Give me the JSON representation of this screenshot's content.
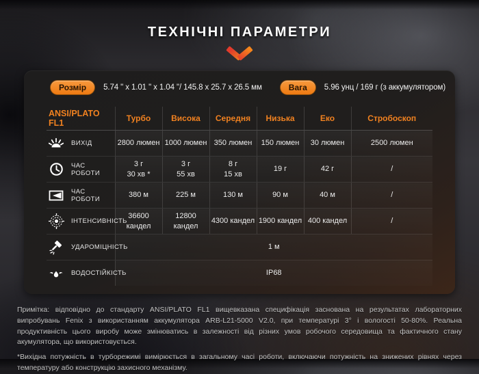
{
  "title": "ТЕХНІЧНІ ПАРАМЕТРИ",
  "specs": {
    "size_label": "Розмір",
    "size_value": "5.74 \" x 1.01 \" x 1.04 \"/ 145.8 x 25.7 x 26.5 мм",
    "weight_label": "Вага",
    "weight_value": "5.96 унц / 169 г (з аккумулятором)"
  },
  "table": {
    "header": [
      "ANSI/PLATO FL1",
      "Турбо",
      "Висока",
      "Середня",
      "Низька",
      "Еко",
      "Стробоскоп"
    ],
    "rows": [
      {
        "icon": "light-output-icon",
        "label": "ВИХІД",
        "values": [
          "2800 люмен",
          "1000 люмен",
          "350 люмен",
          "150 люмен",
          "30 люмен",
          "2500 люмен"
        ]
      },
      {
        "icon": "clock-icon",
        "label": "ЧАС РОБОТИ",
        "values": [
          "3 г\n30 хв *",
          "3 г\n55 хв",
          "8 г\n15 хв",
          "19 г",
          "42 г",
          "/"
        ]
      },
      {
        "icon": "beam-distance-icon",
        "label": "ЧАС РОБОТИ",
        "values": [
          "380 м",
          "225 м",
          "130 м",
          "90 м",
          "40 м",
          "/"
        ]
      },
      {
        "icon": "intensity-icon",
        "label": "ІНТЕНСИВНІСТЬ",
        "values": [
          "36600 кандел",
          "12800 кандел",
          "4300 кандел",
          "1900 кандел",
          "400 кандел",
          "/"
        ]
      },
      {
        "icon": "impact-icon",
        "label": "УДАРОМІЦНІСТЬ",
        "span_value": "1 м"
      },
      {
        "icon": "water-icon",
        "label": "ВОДОСТІЙКІСТЬ",
        "span_value": "IP68"
      }
    ]
  },
  "footnotes": [
    "Примітка: відповідно до стандарту ANSI/PLATO FL1 вищевказана специфікація заснована на результатах лабораторних випробувань Fenix з використанням аккумулятора ARB-L21-5000 V2.0, при температурі 3° і вологості 50-80%. Реальна продуктивність цього виробу може змінюватись в залежності від різних умов робочого середовища та фактичного стану акумулятора, що використовується.",
    "*Вихідна потужність в турборежимі вимірюється в загальному часі роботи, включаючи потужність на знижених рівнях через температуру або конструкцію захисного механізму."
  ],
  "colors": {
    "accent_orange": "#f08120",
    "badge_orange": "#f28322",
    "chevron_red": "#e23b2c",
    "panel_bg": "#201e1d",
    "text_light": "#f0f0f0",
    "note_text": "#c3c3c3"
  }
}
